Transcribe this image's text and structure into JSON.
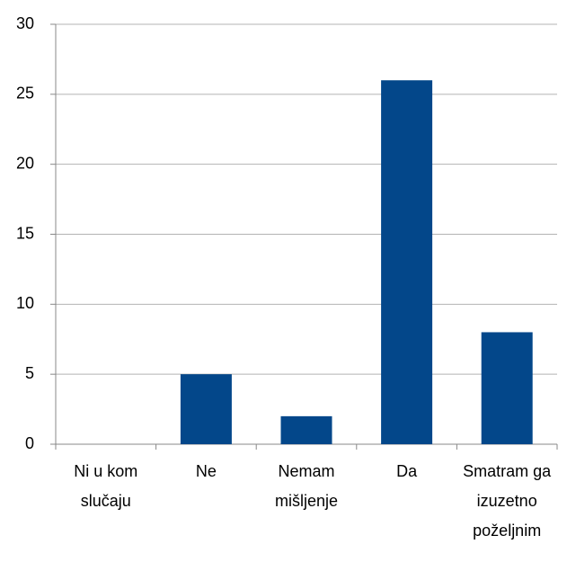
{
  "chart_data": {
    "type": "bar",
    "categories": [
      "Ni u kom slučaju",
      "Ne",
      "Nemam mišljenje",
      "Da",
      "Smatram ga izuzetno poželjnim"
    ],
    "values": [
      0,
      5,
      2,
      26,
      8
    ],
    "color": "#03478a",
    "ylim": [
      0,
      30
    ],
    "yticks": [
      0,
      5,
      10,
      15,
      20,
      25,
      30
    ],
    "grid": true
  }
}
